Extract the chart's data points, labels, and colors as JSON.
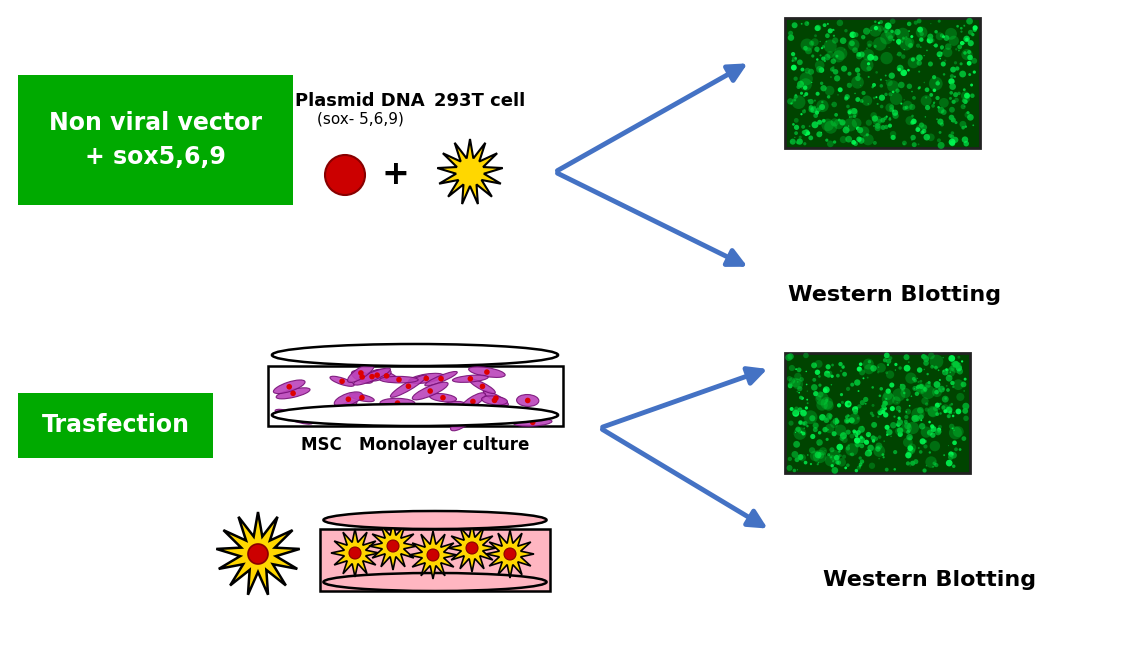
{
  "bg_color": "#ffffff",
  "green_box1_text": "Non viral vector\n+ sox5,6,9",
  "green_box2_text": "Trasfection",
  "green_box_color": "#00aa00",
  "green_box_text_color": "#ffffff",
  "plasmid_label": "Plasmid DNA",
  "plasmid_sub": "(sox- 5,6,9)",
  "cell_label": "293T cell",
  "plus_sign": "+",
  "msc_label": "MSC   Monolayer culture",
  "western_blotting": "Western Blotting",
  "arrow_color": "#4472C4",
  "cell_color": "#FFD700",
  "cell_outline": "#000000",
  "dna_color": "#CC0000",
  "fig_width": 11.4,
  "fig_height": 6.46
}
